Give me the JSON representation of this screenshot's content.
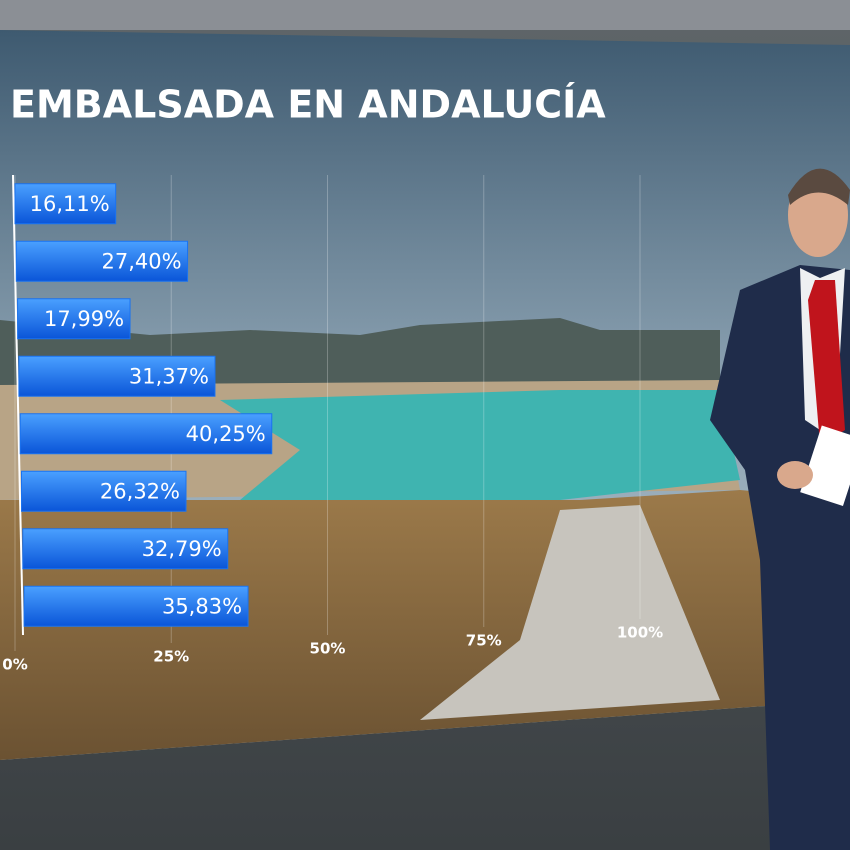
{
  "chart_data": {
    "type": "bar",
    "orientation": "horizontal",
    "title": "EMBALSADA EN ANDALUCÍA",
    "values": [
      16.11,
      27.4,
      17.99,
      31.37,
      40.25,
      26.32,
      32.79,
      35.83
    ],
    "value_labels": [
      "16,11%",
      "27,40%",
      "17,99%",
      "31,37%",
      "40,25%",
      "26,32%",
      "32,79%",
      "35,83%"
    ],
    "color": "#1a73f0",
    "xlim": [
      0,
      100
    ],
    "xticks": [
      {
        "value": 0,
        "label": "0%"
      },
      {
        "value": 25,
        "label": "25%"
      },
      {
        "value": 50,
        "label": "50%"
      },
      {
        "value": 75,
        "label": "75%"
      },
      {
        "value": 100,
        "label": "100%"
      }
    ],
    "grid": true
  }
}
